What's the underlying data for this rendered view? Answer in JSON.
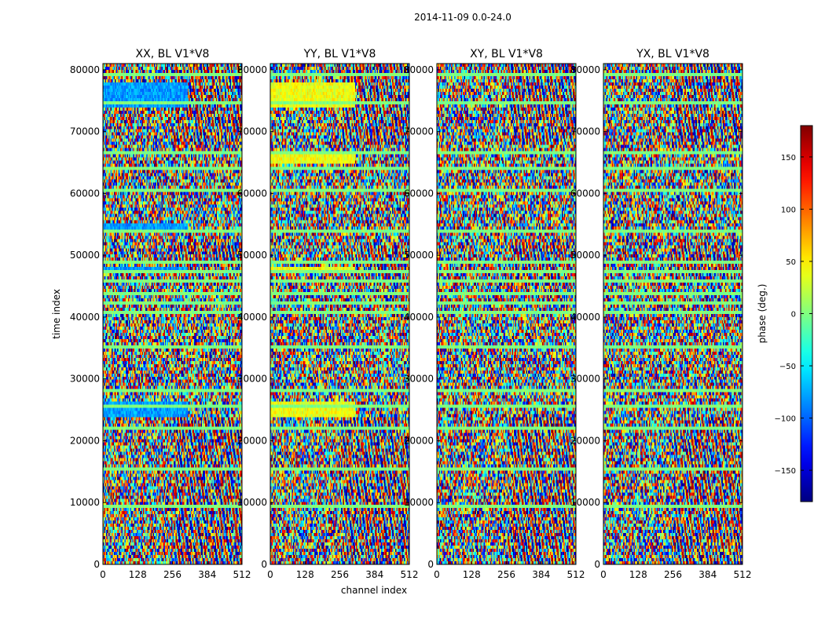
{
  "chart_data": {
    "type": "heatmap",
    "suptitle": "2014-11-09 0.0-24.0",
    "xlabel": "channel index",
    "ylabel": "time index",
    "xlim": [
      0,
      512
    ],
    "ylim": [
      0,
      81000
    ],
    "xticks": [
      0,
      128,
      256,
      384,
      512
    ],
    "yticks": [
      0,
      10000,
      20000,
      30000,
      40000,
      50000,
      60000,
      70000,
      80000
    ],
    "colormap": "jet",
    "colorbar": {
      "label": "phase (deg.)",
      "range": [
        -180,
        180
      ],
      "ticks": [
        -150,
        -100,
        -50,
        0,
        50,
        100,
        150
      ],
      "tick_labels": [
        "−150",
        "−100",
        "−50",
        "0",
        "50",
        "100",
        "150"
      ]
    },
    "panels": [
      {
        "title": "XX, BL V1*V8",
        "polarization": "XX",
        "calibrated_bands": [
          [
            74000,
            78000
          ],
          [
            24000,
            26500
          ],
          [
            47000,
            48000
          ],
          [
            54000,
            55000
          ]
        ],
        "band_phase": -80
      },
      {
        "title": "YY, BL V1*V8",
        "polarization": "YY",
        "calibrated_bands": [
          [
            74000,
            78000
          ],
          [
            24000,
            26500
          ],
          [
            47000,
            48000
          ],
          [
            65000,
            67000
          ]
        ],
        "band_phase": 40
      },
      {
        "title": "XY, BL V1*V8",
        "polarization": "XY",
        "calibrated_bands": [],
        "band_phase": 0
      },
      {
        "title": "YX, BL V1*V8",
        "polarization": "YX",
        "calibrated_bands": [],
        "band_phase": 0
      }
    ],
    "flagged_rows": [
      9500,
      15500,
      22000,
      25500,
      28000,
      35000,
      41000,
      42500,
      44000,
      46000,
      47500,
      49000,
      54000,
      60500,
      64000,
      66500,
      74500,
      79000
    ]
  }
}
